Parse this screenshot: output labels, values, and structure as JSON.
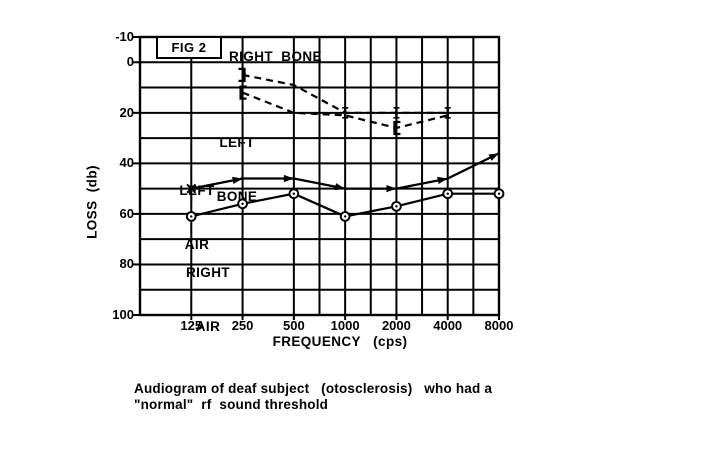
{
  "fig_label": "FIG 2",
  "labels": {
    "right_bone": "RIGHT  BONE",
    "left_bone_line1": "LEFT",
    "left_bone_line2": "BONE",
    "left_air_line1": "LEFT",
    "left_air_line2": "AIR",
    "right_air_line1": "RIGHT",
    "right_air_line2": "AIR"
  },
  "axes": {
    "x_title": "FREQUENCY   (cps)",
    "y_title": "LOSS  (db)"
  },
  "caption": {
    "line1": "Audiogram of deaf subject   (otosclerosis)   who had a",
    "line2": "\"normal\"  rf  sound threshold"
  },
  "colors": {
    "ink": "#000000",
    "paper": "#ffffff"
  },
  "chart_data": {
    "type": "line",
    "title": "FIG 2",
    "xlabel": "FREQUENCY (cps)",
    "ylabel": "LOSS (db)",
    "x_scale": "log2",
    "x_ticks": [
      125,
      250,
      500,
      1000,
      2000,
      4000,
      8000
    ],
    "x_gridlines": [
      125,
      250,
      500,
      707,
      1000,
      1414,
      2000,
      2828,
      4000,
      5657,
      8000
    ],
    "y_ticks": [
      -10,
      0,
      20,
      40,
      60,
      80,
      100
    ],
    "ylim": [
      -10,
      100
    ],
    "y_grid_step": 10,
    "grid": true,
    "legend_position": "inline-labels",
    "series": [
      {
        "name": "RIGHT BONE",
        "line": "dashed",
        "points": [
          [
            250,
            5,
            "]"
          ],
          [
            500,
            9,
            ""
          ],
          [
            1000,
            20,
            "|"
          ],
          [
            2000,
            20,
            "|"
          ],
          [
            4000,
            20,
            "|"
          ]
        ]
      },
      {
        "name": "LEFT BONE",
        "line": "dashed",
        "points": [
          [
            250,
            12,
            "["
          ],
          [
            500,
            20,
            ""
          ],
          [
            1000,
            21,
            ""
          ],
          [
            2000,
            26,
            "["
          ],
          [
            4000,
            21,
            ""
          ]
        ]
      },
      {
        "name": "LEFT AIR",
        "line": "solid",
        "points": [
          [
            125,
            50,
            "x"
          ],
          [
            250,
            46,
            "arrow"
          ],
          [
            500,
            46,
            "arrow"
          ],
          [
            1000,
            50,
            "arrow"
          ],
          [
            2000,
            50,
            "arrow"
          ],
          [
            4000,
            46,
            "arrow"
          ],
          [
            8000,
            36,
            "arrow"
          ]
        ]
      },
      {
        "name": "RIGHT AIR",
        "line": "solid",
        "points": [
          [
            125,
            61,
            "o"
          ],
          [
            250,
            56,
            "o"
          ],
          [
            500,
            52,
            "o"
          ],
          [
            1000,
            61,
            "o"
          ],
          [
            2000,
            57,
            "o"
          ],
          [
            4000,
            52,
            "o"
          ],
          [
            8000,
            52,
            "o"
          ]
        ]
      }
    ]
  }
}
